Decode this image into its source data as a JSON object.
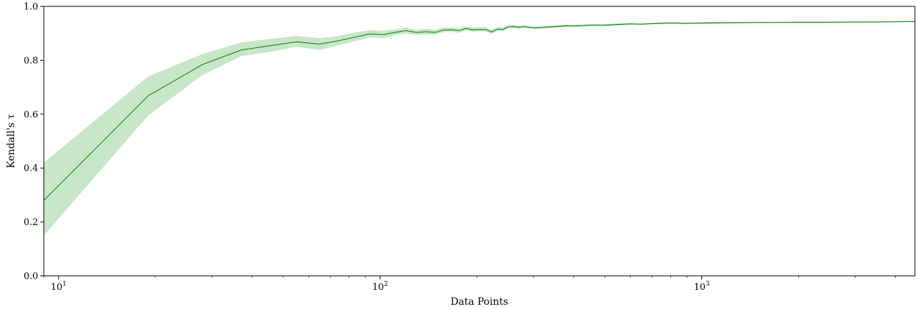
{
  "chart_data": {
    "type": "line",
    "title": "",
    "xlabel": "Data Points",
    "ylabel": "Kendall's τ",
    "x_scale": "log",
    "xlim": [
      9,
      4600
    ],
    "ylim": [
      0.0,
      1.0
    ],
    "x_major_ticks": [
      {
        "value": 10,
        "base": "10",
        "exp": "1"
      },
      {
        "value": 100,
        "base": "10",
        "exp": "2"
      },
      {
        "value": 1000,
        "base": "10",
        "exp": "3"
      }
    ],
    "y_ticks": [
      {
        "value": 0.0,
        "label": "0.0"
      },
      {
        "value": 0.2,
        "label": "0.2"
      },
      {
        "value": 0.4,
        "label": "0.4"
      },
      {
        "value": 0.6,
        "label": "0.6"
      },
      {
        "value": 0.8,
        "label": "0.8"
      },
      {
        "value": 1.0,
        "label": "1.0"
      }
    ],
    "grid": false,
    "line_color": "#008000",
    "band_color": "#c8e6c8",
    "series": [
      {
        "x": [
          9,
          19,
          28,
          37,
          46,
          55,
          65,
          74,
          83,
          93,
          102,
          111,
          120,
          130,
          139,
          148,
          157,
          167,
          176,
          185,
          194,
          204,
          213,
          222,
          232,
          241,
          250,
          260,
          270,
          280,
          300,
          320,
          350,
          380,
          400,
          450,
          500,
          550,
          600,
          650,
          700,
          800,
          900,
          1000,
          1200,
          1500,
          2000,
          2500,
          3000,
          3500,
          4000,
          4600
        ],
        "y": [
          0.28,
          0.668,
          0.784,
          0.838,
          0.855,
          0.868,
          0.86,
          0.872,
          0.885,
          0.898,
          0.895,
          0.903,
          0.91,
          0.903,
          0.906,
          0.903,
          0.912,
          0.913,
          0.91,
          0.918,
          0.913,
          0.914,
          0.914,
          0.905,
          0.916,
          0.914,
          0.924,
          0.925,
          0.922,
          0.925,
          0.92,
          0.922,
          0.925,
          0.928,
          0.927,
          0.93,
          0.93,
          0.933,
          0.935,
          0.934,
          0.936,
          0.938,
          0.937,
          0.938,
          0.939,
          0.94,
          0.941,
          0.941,
          0.942,
          0.942,
          0.943,
          0.944
        ],
        "lower": [
          0.15,
          0.595,
          0.745,
          0.815,
          0.832,
          0.85,
          0.838,
          0.855,
          0.87,
          0.885,
          0.882,
          0.892,
          0.9,
          0.893,
          0.896,
          0.894,
          0.904,
          0.905,
          0.902,
          0.91,
          0.906,
          0.907,
          0.907,
          0.898,
          0.909,
          0.908,
          0.918,
          0.919,
          0.916,
          0.92,
          0.915,
          0.917,
          0.92,
          0.924,
          0.923,
          0.926,
          0.926,
          0.929,
          0.932,
          0.931,
          0.933,
          0.935,
          0.934,
          0.935,
          0.936,
          0.938,
          0.939,
          0.939,
          0.94,
          0.94,
          0.941,
          0.942
        ],
        "upper": [
          0.42,
          0.74,
          0.823,
          0.866,
          0.88,
          0.89,
          0.882,
          0.89,
          0.902,
          0.912,
          0.909,
          0.915,
          0.921,
          0.914,
          0.917,
          0.913,
          0.921,
          0.922,
          0.919,
          0.926,
          0.921,
          0.922,
          0.922,
          0.913,
          0.923,
          0.921,
          0.93,
          0.931,
          0.928,
          0.93,
          0.925,
          0.927,
          0.93,
          0.932,
          0.931,
          0.934,
          0.934,
          0.937,
          0.938,
          0.937,
          0.939,
          0.941,
          0.94,
          0.941,
          0.942,
          0.942,
          0.943,
          0.943,
          0.944,
          0.944,
          0.945,
          0.946
        ]
      }
    ]
  }
}
